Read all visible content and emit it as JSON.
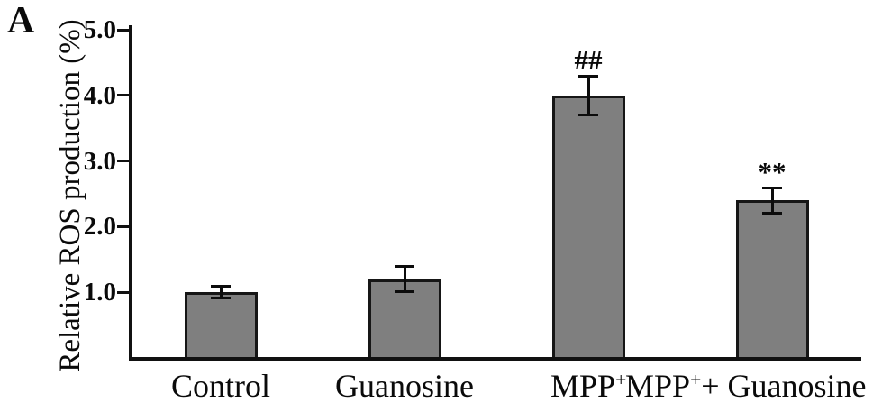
{
  "panel_label": "A",
  "chart_data": {
    "type": "bar",
    "title": "",
    "xlabel": "",
    "ylabel": "Relative ROS production (%)",
    "ylim": [
      0,
      5.0
    ],
    "yticks": [
      1.0,
      2.0,
      3.0,
      4.0,
      5.0
    ],
    "ytick_labels": [
      "1.0",
      "2.0",
      "3.0",
      "4.0",
      "5.0"
    ],
    "grid": false,
    "legend": "none",
    "bar_color": "#7f7f7f",
    "bar_border_color": "#161616",
    "axis_color": "#111111",
    "categories": [
      {
        "label": "Control",
        "base": "Control",
        "sup": "",
        "rest": ""
      },
      {
        "label": "Guanosine",
        "base": "Guanosine",
        "sup": "",
        "rest": ""
      },
      {
        "label": "MPP+",
        "base": "MPP",
        "sup": "+",
        "rest": ""
      },
      {
        "label": "MPP+ + Guanosine",
        "base": "MPP",
        "sup": "+",
        "rest": "+ Guanosine"
      }
    ],
    "values": [
      1.0,
      1.2,
      4.0,
      2.4
    ],
    "errors": [
      0.1,
      0.2,
      0.3,
      0.2
    ],
    "annotations": [
      "",
      "",
      "##",
      "**"
    ]
  }
}
